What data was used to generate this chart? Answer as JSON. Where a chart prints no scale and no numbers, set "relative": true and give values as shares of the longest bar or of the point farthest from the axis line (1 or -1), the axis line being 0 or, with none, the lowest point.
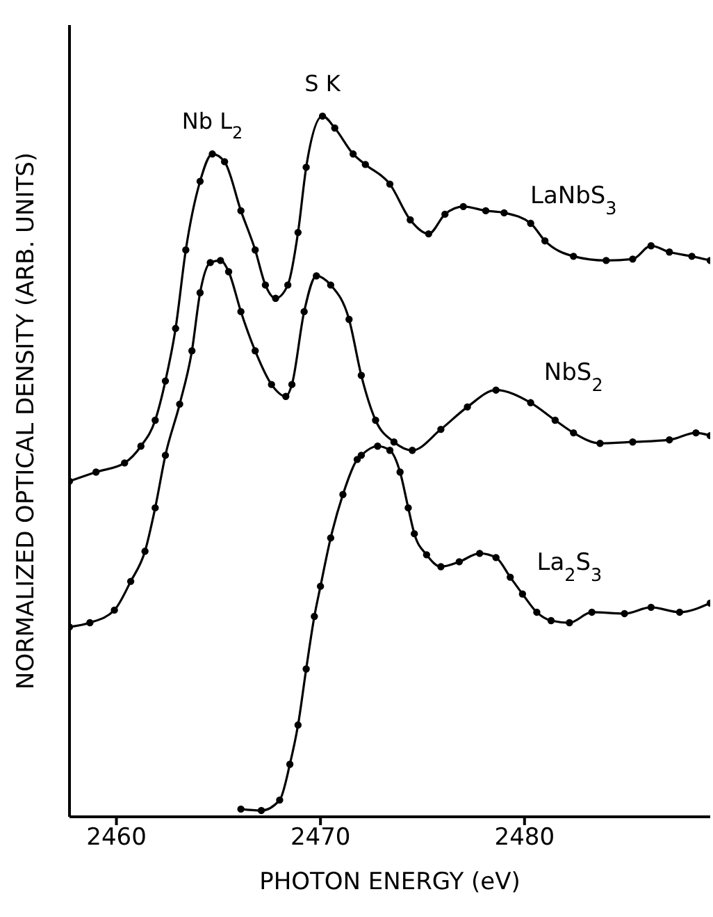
{
  "chart_data": {
    "type": "line",
    "xlabel": "PHOTON ENERGY (eV)",
    "ylabel": "NORMALIZED OPTICAL DENSITY (ARB. UNITS)",
    "relative": true,
    "marker": "circle",
    "line_style": "solid",
    "xlim": [
      2457.7,
      2489.1
    ],
    "xticks": [
      2460,
      2470,
      2480
    ],
    "annotations": [
      {
        "text": "Nb L$_{2}$",
        "x": 2464.7,
        "y": 0.946
      },
      {
        "text": "S K",
        "x": 2470.1,
        "y": 1.0
      }
    ],
    "series": [
      {
        "name": "LaNbS$_{3}$",
        "color": "#000000",
        "x": [
          2457.7,
          2459.0,
          2460.4,
          2461.2,
          2461.9,
          2462.4,
          2462.9,
          2463.4,
          2464.1,
          2464.7,
          2465.3,
          2466.1,
          2466.8,
          2467.3,
          2467.8,
          2468.4,
          2468.9,
          2469.3,
          2470.1,
          2470.7,
          2471.6,
          2472.2,
          2473.4,
          2474.4,
          2475.3,
          2476.1,
          2477.0,
          2478.1,
          2479.0,
          2480.3,
          2481.0,
          2482.4,
          2484.0,
          2485.3,
          2486.2,
          2487.1,
          2488.2,
          2489.1
        ],
        "values": [
          0.479,
          0.492,
          0.505,
          0.529,
          0.566,
          0.622,
          0.697,
          0.809,
          0.907,
          0.946,
          0.935,
          0.865,
          0.809,
          0.759,
          0.74,
          0.759,
          0.834,
          0.927,
          1.0,
          0.983,
          0.946,
          0.931,
          0.903,
          0.852,
          0.832,
          0.86,
          0.871,
          0.865,
          0.862,
          0.847,
          0.822,
          0.8,
          0.794,
          0.796,
          0.815,
          0.806,
          0.8,
          0.794
        ]
      },
      {
        "name": "NbS$_{2}$",
        "color": "#000000",
        "x": [
          2457.7,
          2458.7,
          2459.9,
          2460.7,
          2461.4,
          2461.9,
          2462.4,
          2463.1,
          2463.7,
          2464.1,
          2464.6,
          2465.1,
          2465.5,
          2466.1,
          2466.8,
          2467.6,
          2468.3,
          2468.6,
          2469.2,
          2469.8,
          2470.5,
          2471.4,
          2472.0,
          2472.7,
          2473.6,
          2474.5,
          2475.9,
          2477.2,
          2478.6,
          2480.3,
          2481.5,
          2482.4,
          2483.7,
          2485.3,
          2487.1,
          2488.4,
          2489.1
        ],
        "values": [
          0.271,
          0.277,
          0.295,
          0.336,
          0.379,
          0.441,
          0.516,
          0.589,
          0.665,
          0.748,
          0.791,
          0.794,
          0.778,
          0.721,
          0.665,
          0.617,
          0.6,
          0.617,
          0.721,
          0.772,
          0.759,
          0.71,
          0.63,
          0.566,
          0.535,
          0.523,
          0.553,
          0.585,
          0.609,
          0.591,
          0.566,
          0.548,
          0.533,
          0.535,
          0.538,
          0.548,
          0.544
        ]
      },
      {
        "name": "La$_{2}$S$_{3}$",
        "color": "#000000",
        "x": [
          2466.1,
          2467.1,
          2468.0,
          2468.5,
          2468.9,
          2469.3,
          2469.7,
          2470.0,
          2470.5,
          2471.1,
          2471.8,
          2472.0,
          2472.8,
          2473.4,
          2473.9,
          2474.3,
          2474.6,
          2475.2,
          2475.9,
          2476.8,
          2477.8,
          2478.6,
          2479.3,
          2479.9,
          2480.6,
          2481.3,
          2482.2,
          2483.3,
          2484.9,
          2486.2,
          2487.6,
          2489.1
        ],
        "values": [
          0.011,
          0.009,
          0.024,
          0.075,
          0.131,
          0.211,
          0.286,
          0.329,
          0.398,
          0.46,
          0.51,
          0.516,
          0.529,
          0.523,
          0.492,
          0.441,
          0.404,
          0.374,
          0.357,
          0.364,
          0.376,
          0.37,
          0.342,
          0.318,
          0.292,
          0.28,
          0.277,
          0.292,
          0.29,
          0.299,
          0.292,
          0.305
        ]
      }
    ]
  }
}
